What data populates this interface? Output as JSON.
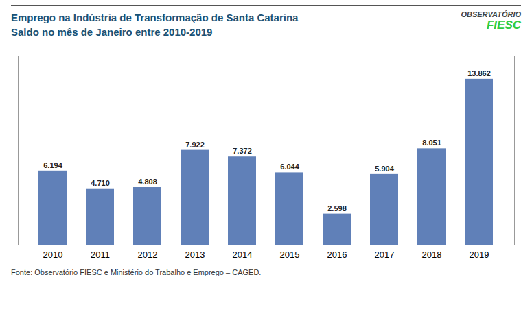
{
  "chart_data": {
    "type": "bar",
    "title": "Emprego na Indústria de Transformação de Santa Catarina",
    "subtitle": "Saldo no mês de Janeiro entre 2010-2019",
    "annotations": [
      "OBSERVATÓRIO",
      "FIESC",
      "Fonte: Observatório FIESC e Ministério do Trabalho e Emprego – CAGED."
    ],
    "categories": [
      "2010",
      "2011",
      "2012",
      "2013",
      "2014",
      "2015",
      "2016",
      "2017",
      "2018",
      "2019"
    ],
    "values": [
      6194,
      4710,
      4808,
      7922,
      7372,
      6044,
      2598,
      5904,
      8051,
      13862
    ],
    "value_labels": [
      "6.194",
      "4.710",
      "4.808",
      "7.922",
      "7.372",
      "6.044",
      "2.598",
      "5.904",
      "8.051",
      "13.862"
    ],
    "color": "#6080b8",
    "ylim": [
      0,
      15800
    ],
    "data_labels": true,
    "tick_labels": "x"
  }
}
